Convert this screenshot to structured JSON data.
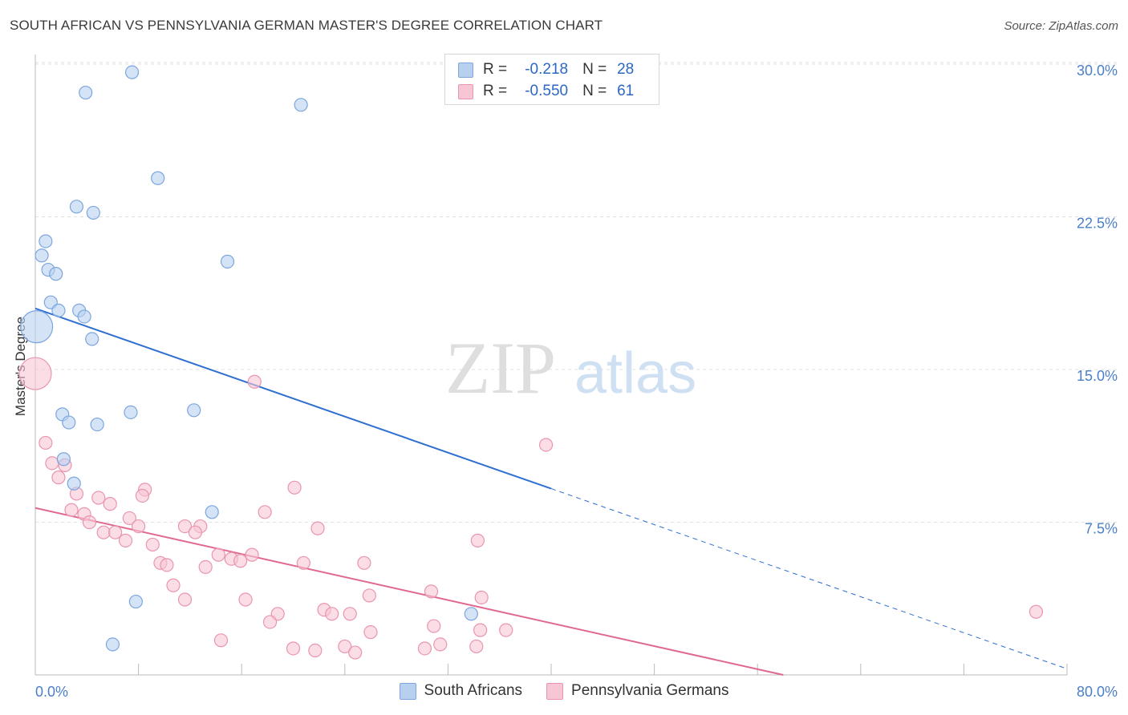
{
  "title": "SOUTH AFRICAN VS PENNSYLVANIA GERMAN MASTER'S DEGREE CORRELATION CHART",
  "source": "Source: ZipAtlas.com",
  "watermark": {
    "zip": "ZIP",
    "atlas": "atlas"
  },
  "legend": {
    "rows": [
      {
        "r_label": "R =",
        "r_value": "-0.218",
        "n_label": "N =",
        "n_value": "28"
      },
      {
        "r_label": "R =",
        "r_value": "-0.550",
        "n_label": "N =",
        "n_value": "61"
      }
    ]
  },
  "bottom_legend": [
    "South Africans",
    "Pennsylvania Germans"
  ],
  "colors": {
    "blue_fill": "#b7d0f0",
    "blue_stroke": "#7ba6de",
    "blue_line": "#2e6fd1",
    "pink_fill": "#f7c6d4",
    "pink_stroke": "#ea95b0",
    "pink_line": "#e0688e",
    "grid": "#e2e2e2",
    "axis_text": "#4a7fc8"
  },
  "chart_data": {
    "type": "scatter",
    "title": "SOUTH AFRICAN VS PENNSYLVANIA GERMAN MASTER'S DEGREE CORRELATION CHART",
    "xlabel": "",
    "ylabel": "Master's Degree",
    "xlim": [
      0,
      80
    ],
    "ylim": [
      0,
      30
    ],
    "x_tick_labels": [
      "0.0%",
      "80.0%"
    ],
    "y_ticks": [
      7.5,
      15.0,
      22.5,
      30.0
    ],
    "y_tick_labels": [
      "7.5%",
      "15.0%",
      "22.5%",
      "30.0%"
    ],
    "grid": true,
    "series": [
      {
        "name": "South Africans",
        "r": -0.218,
        "n": 28,
        "trend": {
          "x0": 0,
          "y0": 18.0,
          "x1": 80,
          "y1": 0.3,
          "solid_until_x": 40
        },
        "points": [
          [
            7.5,
            29.6
          ],
          [
            3.9,
            28.6
          ],
          [
            20.6,
            28.0
          ],
          [
            9.5,
            24.4
          ],
          [
            3.2,
            23.0
          ],
          [
            4.5,
            22.7
          ],
          [
            0.8,
            21.3
          ],
          [
            0.5,
            20.6
          ],
          [
            1.0,
            19.9
          ],
          [
            1.6,
            19.7
          ],
          [
            14.9,
            20.3
          ],
          [
            1.2,
            18.3
          ],
          [
            1.8,
            17.9
          ],
          [
            3.4,
            17.9
          ],
          [
            3.8,
            17.6
          ],
          [
            0.1,
            17.1,
            "big"
          ],
          [
            4.4,
            16.5
          ],
          [
            2.1,
            12.8
          ],
          [
            2.6,
            12.4
          ],
          [
            4.8,
            12.3
          ],
          [
            7.4,
            12.9
          ],
          [
            12.3,
            13.0
          ],
          [
            2.2,
            10.6
          ],
          [
            3.0,
            9.4
          ],
          [
            13.7,
            8.0
          ],
          [
            7.8,
            3.6
          ],
          [
            6.0,
            1.5
          ],
          [
            33.8,
            3.0
          ]
        ]
      },
      {
        "name": "Pennsylvania Germans",
        "r": -0.55,
        "n": 61,
        "trend": {
          "x0": 0,
          "y0": 8.2,
          "x1": 58,
          "y1": 0.0
        },
        "points": [
          [
            0.0,
            14.8,
            "big"
          ],
          [
            17.0,
            14.4
          ],
          [
            39.6,
            11.3
          ],
          [
            0.8,
            11.4
          ],
          [
            1.3,
            10.4
          ],
          [
            2.3,
            10.3
          ],
          [
            1.8,
            9.7
          ],
          [
            20.1,
            9.2
          ],
          [
            8.5,
            9.1
          ],
          [
            3.2,
            8.9
          ],
          [
            8.3,
            8.8
          ],
          [
            4.9,
            8.7
          ],
          [
            5.8,
            8.4
          ],
          [
            2.8,
            8.1
          ],
          [
            3.8,
            7.9
          ],
          [
            17.8,
            8.0
          ],
          [
            7.3,
            7.7
          ],
          [
            4.2,
            7.5
          ],
          [
            11.6,
            7.3
          ],
          [
            8.0,
            7.3
          ],
          [
            12.8,
            7.3
          ],
          [
            21.9,
            7.2
          ],
          [
            5.3,
            7.0
          ],
          [
            6.2,
            7.0
          ],
          [
            12.4,
            7.0
          ],
          [
            7.0,
            6.6
          ],
          [
            34.3,
            6.6
          ],
          [
            9.1,
            6.4
          ],
          [
            14.2,
            5.9
          ],
          [
            16.8,
            5.9
          ],
          [
            9.7,
            5.5
          ],
          [
            10.2,
            5.4
          ],
          [
            15.2,
            5.7
          ],
          [
            15.9,
            5.6
          ],
          [
            20.8,
            5.5
          ],
          [
            25.5,
            5.5
          ],
          [
            13.2,
            5.3
          ],
          [
            10.7,
            4.4
          ],
          [
            11.6,
            3.7
          ],
          [
            16.3,
            3.7
          ],
          [
            25.9,
            3.9
          ],
          [
            30.7,
            4.1
          ],
          [
            34.6,
            3.8
          ],
          [
            18.8,
            3.0
          ],
          [
            22.4,
            3.2
          ],
          [
            23.0,
            3.0
          ],
          [
            24.4,
            3.0
          ],
          [
            77.6,
            3.1
          ],
          [
            18.2,
            2.6
          ],
          [
            30.9,
            2.4
          ],
          [
            26.0,
            2.1
          ],
          [
            34.5,
            2.2
          ],
          [
            36.5,
            2.2
          ],
          [
            14.4,
            1.7
          ],
          [
            20.0,
            1.3
          ],
          [
            21.7,
            1.2
          ],
          [
            24.0,
            1.4
          ],
          [
            24.8,
            1.1
          ],
          [
            30.2,
            1.3
          ],
          [
            31.4,
            1.5
          ],
          [
            34.2,
            1.4
          ]
        ]
      }
    ]
  }
}
